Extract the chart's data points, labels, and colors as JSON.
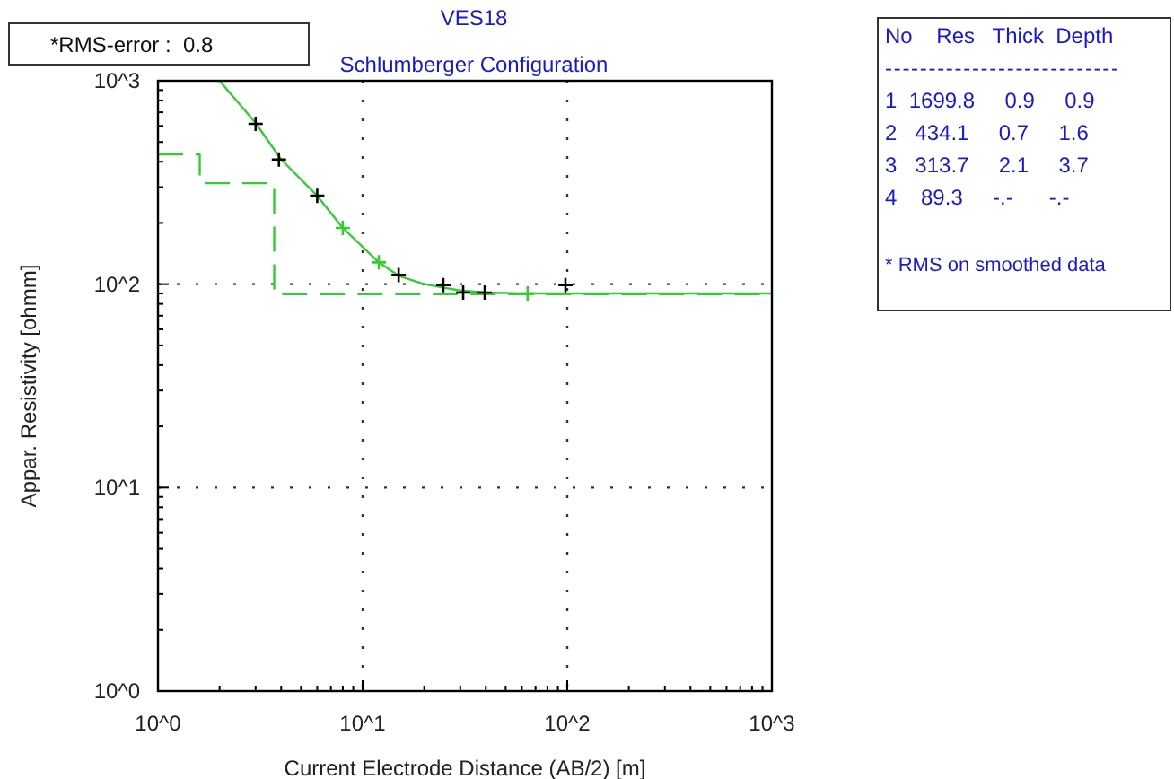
{
  "chart_data": {
    "type": "line",
    "title": "VES18",
    "subtitle": "Schlumberger Configuration",
    "xlabel": "Current Electrode Distance (AB/2) [m]",
    "ylabel": "Appar. Resistivity [ohmm]",
    "log": "xy",
    "grid": true,
    "xlim": [
      1,
      1000
    ],
    "ylim": [
      1,
      1000
    ],
    "xticks": [
      {
        "value": 1,
        "label": "10^0"
      },
      {
        "value": 2,
        "label": null
      },
      {
        "value": 3,
        "label": null
      },
      {
        "value": 4,
        "label": null
      },
      {
        "value": 5,
        "label": null
      },
      {
        "value": 6,
        "label": null
      },
      {
        "value": 7,
        "label": null
      },
      {
        "value": 8,
        "label": null
      },
      {
        "value": 9,
        "label": null
      },
      {
        "value": 10,
        "label": "10^1"
      },
      {
        "value": 20,
        "label": null
      },
      {
        "value": 30,
        "label": null
      },
      {
        "value": 40,
        "label": null
      },
      {
        "value": 50,
        "label": null
      },
      {
        "value": 60,
        "label": null
      },
      {
        "value": 70,
        "label": null
      },
      {
        "value": 80,
        "label": null
      },
      {
        "value": 90,
        "label": null
      },
      {
        "value": 100,
        "label": "10^2"
      },
      {
        "value": 200,
        "label": null
      },
      {
        "value": 300,
        "label": null
      },
      {
        "value": 400,
        "label": null
      },
      {
        "value": 500,
        "label": null
      },
      {
        "value": 600,
        "label": null
      },
      {
        "value": 700,
        "label": null
      },
      {
        "value": 800,
        "label": null
      },
      {
        "value": 900,
        "label": null
      },
      {
        "value": 1000,
        "label": "10^3"
      }
    ],
    "yticks": [
      {
        "value": 1,
        "label": "10^0"
      },
      {
        "value": 2,
        "label": null
      },
      {
        "value": 3,
        "label": null
      },
      {
        "value": 4,
        "label": null
      },
      {
        "value": 5,
        "label": null
      },
      {
        "value": 6,
        "label": null
      },
      {
        "value": 7,
        "label": null
      },
      {
        "value": 8,
        "label": null
      },
      {
        "value": 9,
        "label": null
      },
      {
        "value": 10,
        "label": "10^1"
      },
      {
        "value": 20,
        "label": null
      },
      {
        "value": 30,
        "label": null
      },
      {
        "value": 40,
        "label": null
      },
      {
        "value": 50,
        "label": null
      },
      {
        "value": 60,
        "label": null
      },
      {
        "value": 70,
        "label": null
      },
      {
        "value": 80,
        "label": null
      },
      {
        "value": 90,
        "label": null
      },
      {
        "value": 100,
        "label": "10^2"
      },
      {
        "value": 200,
        "label": null
      },
      {
        "value": 300,
        "label": null
      },
      {
        "value": 400,
        "label": null
      },
      {
        "value": 500,
        "label": null
      },
      {
        "value": 600,
        "label": null
      },
      {
        "value": 700,
        "label": null
      },
      {
        "value": 800,
        "label": null
      },
      {
        "value": 900,
        "label": null
      },
      {
        "value": 1000,
        "label": "10^3"
      }
    ],
    "series": [
      {
        "color": "#33cc33",
        "line_style": "dashed",
        "marker": "none",
        "x": [
          1,
          1.6,
          1.6,
          3.7,
          3.7,
          1000
        ],
        "values": [
          434.1,
          434.1,
          313.7,
          313.7,
          89.3,
          89.3
        ]
      },
      {
        "color": "#33cc33",
        "line_style": "solid",
        "marker": "none",
        "x": [
          2,
          3,
          4,
          6,
          8,
          12,
          15,
          20,
          25,
          30,
          40,
          60,
          100,
          1000
        ],
        "values": [
          1000,
          620,
          410,
          272,
          189,
          128,
          110,
          100,
          96,
          93,
          91,
          90,
          90,
          90
        ]
      },
      {
        "type": "scatter",
        "color": "#33cc33",
        "marker": "cross",
        "x": [
          8,
          12,
          64
        ],
        "values": [
          189,
          128,
          90
        ]
      },
      {
        "type": "scatter",
        "color": "#000000",
        "marker": "cross",
        "x": [
          3,
          3.9,
          6,
          15,
          24.8,
          31,
          39.5,
          98
        ],
        "values": [
          614,
          410,
          272,
          111,
          99,
          91,
          91,
          99
        ]
      }
    ],
    "annotations": [
      "*RMS-error :  0.8",
      "No    Res   Thick  Depth",
      "---------------------------",
      "1  1699.8     0.9     0.9",
      "2   434.1     0.7     1.6",
      "3   313.7     2.1     3.7",
      "4    89.3     -.-      -.-",
      "* RMS on smoothed data"
    ]
  }
}
